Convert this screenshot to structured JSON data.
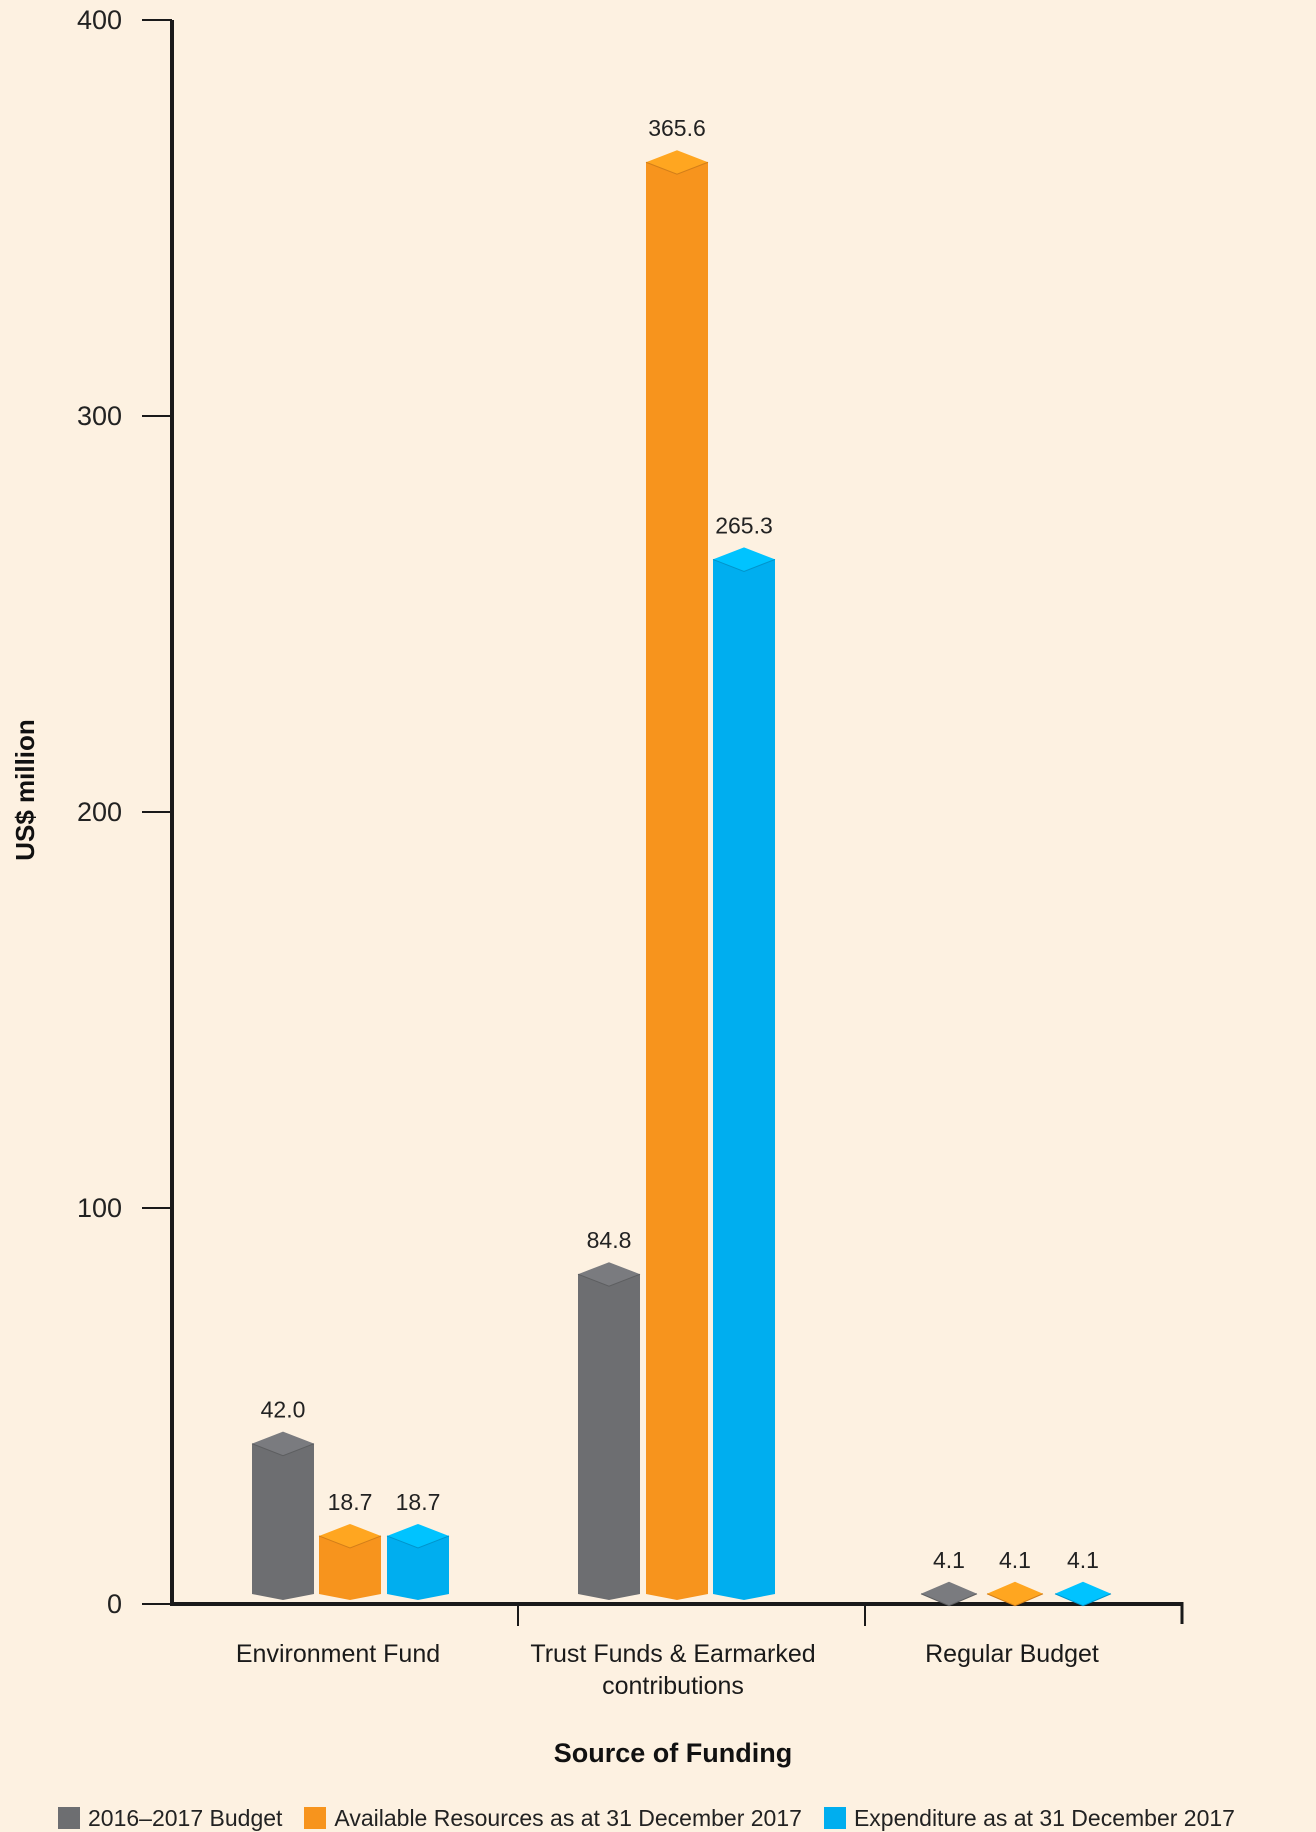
{
  "chart_data": {
    "type": "bar",
    "xlabel": "Source of Funding",
    "ylabel": "US$ million",
    "ylim": [
      0,
      400
    ],
    "yticks": [
      0,
      100,
      200,
      300,
      400
    ],
    "categories": [
      "Environment Fund",
      "Trust Funds & Earmarked contributions",
      "Regular Budget"
    ],
    "series": [
      {
        "name": "2016–2017 Budget",
        "color": "#6d6e71",
        "values": [
          42.0,
          84.8,
          4.1
        ],
        "labels": [
          "42.0",
          "84.8",
          "4.1"
        ]
      },
      {
        "name": "Available Resources as at 31 December 2017",
        "color": "#f7941d",
        "values": [
          18.7,
          365.6,
          4.1
        ],
        "labels": [
          "18.7",
          "365.6",
          "4.1"
        ]
      },
      {
        "name": "Expenditure as at 31 December 2017",
        "color": "#00aeef",
        "values": [
          18.7,
          265.3,
          4.1
        ],
        "labels": [
          "18.7",
          "265.3",
          "4.1"
        ]
      }
    ],
    "grid": false,
    "legend_position": "bottom"
  }
}
